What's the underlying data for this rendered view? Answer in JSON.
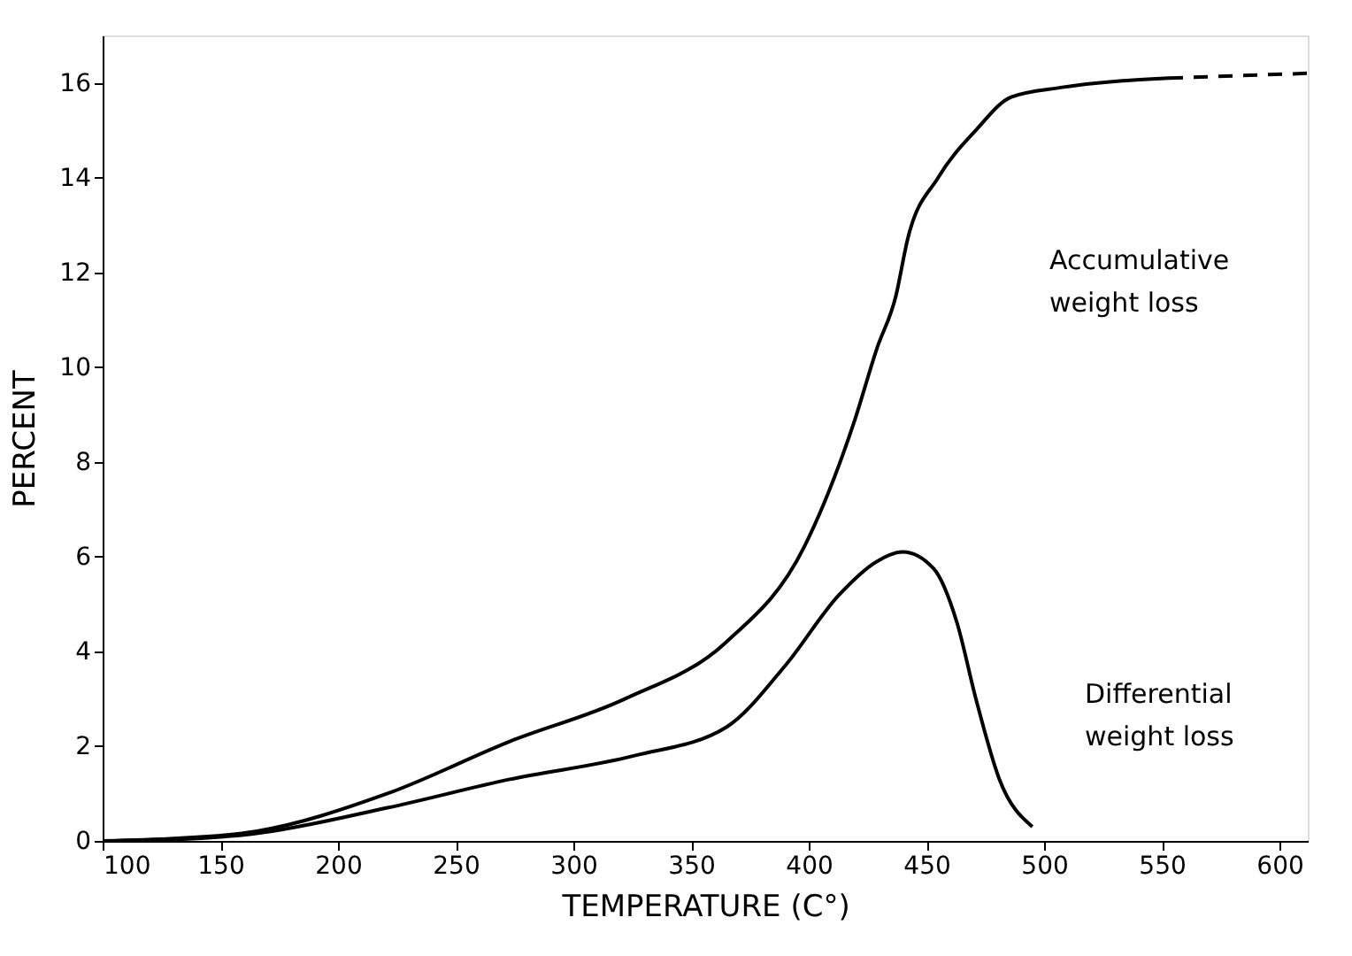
{
  "chart_data": {
    "type": "line",
    "xlabel": "TEMPERATURE (C°)",
    "ylabel": "PERCENT",
    "xlim": [
      100,
      612
    ],
    "ylim": [
      0,
      17
    ],
    "xticks": [
      100,
      150,
      200,
      250,
      300,
      350,
      400,
      450,
      500,
      550,
      600
    ],
    "yticks": [
      0,
      2,
      4,
      6,
      8,
      10,
      12,
      14,
      16
    ],
    "grid": false,
    "marker": "none",
    "series": [
      {
        "color": "#000000",
        "line_style": "solid",
        "x": [
          100,
          130,
          165,
          221,
          273,
          322,
          365,
          398,
          419,
          429,
          437,
          442,
          455,
          471,
          486,
          507,
          553
        ],
        "values": [
          0,
          0.05,
          0.2,
          1.0,
          2.1,
          3.0,
          4.2,
          6.2,
          8.8,
          10.4,
          11.5,
          12.7,
          14.0,
          15.0,
          15.7,
          15.9,
          16.1
        ]
      },
      {
        "color": "#000000",
        "line_style": "dashed",
        "x": [
          553,
          612
        ],
        "values": [
          16.1,
          16.2
        ]
      },
      {
        "color": "#000000",
        "line_style": "solid",
        "x": [
          100,
          130,
          164,
          221,
          273,
          326,
          365,
          390,
          413,
          429,
          440,
          453,
          463,
          471,
          481,
          495
        ],
        "values": [
          0,
          0.03,
          0.15,
          0.7,
          1.3,
          1.8,
          2.4,
          3.7,
          5.2,
          5.9,
          6.1,
          5.75,
          4.6,
          3.0,
          1.3,
          0.3
        ]
      }
    ],
    "annotations": [
      "Accumulative weight loss",
      "Differential weight loss"
    ]
  }
}
